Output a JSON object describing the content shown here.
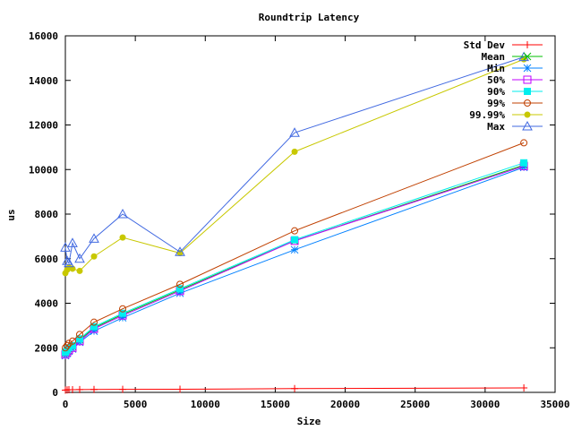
{
  "chart_data": {
    "type": "line",
    "title": "Roundtrip Latency",
    "xlabel": "Size",
    "ylabel": "us",
    "xlim": [
      0,
      35000
    ],
    "ylim": [
      0,
      16000
    ],
    "xticks": [
      0,
      5000,
      10000,
      15000,
      20000,
      25000,
      30000,
      35000
    ],
    "yticks": [
      0,
      2000,
      4000,
      6000,
      8000,
      10000,
      12000,
      14000,
      16000
    ],
    "grid": false,
    "legend": "top-right",
    "x": [
      1,
      128,
      256,
      512,
      1024,
      2048,
      4096,
      8192,
      16384,
      32768
    ],
    "series": [
      {
        "name": "Std Dev",
        "color": "#ff0000",
        "marker": "plus",
        "values": [
          100,
          110,
          120,
          120,
          125,
          130,
          135,
          140,
          170,
          200
        ]
      },
      {
        "name": "Mean",
        "color": "#00c000",
        "marker": "cross",
        "values": [
          1750,
          1850,
          1950,
          2050,
          2350,
          2900,
          3500,
          4600,
          6800,
          10200
        ]
      },
      {
        "name": "Min",
        "color": "#0080ff",
        "marker": "star",
        "values": [
          1650,
          1750,
          1850,
          1950,
          2250,
          2750,
          3350,
          4450,
          6400,
          10100
        ]
      },
      {
        "name": "50%",
        "color": "#c000ff",
        "marker": "box",
        "values": [
          1700,
          1800,
          1900,
          2000,
          2300,
          2850,
          3450,
          4550,
          6800,
          10150
        ]
      },
      {
        "name": "90%",
        "color": "#00eeee",
        "marker": "fbox",
        "values": [
          1800,
          1900,
          2000,
          2100,
          2400,
          2950,
          3550,
          4650,
          6850,
          10300
        ]
      },
      {
        "name": "99%",
        "color": "#c04000",
        "marker": "circle",
        "values": [
          2000,
          2100,
          2200,
          2300,
          2600,
          3150,
          3750,
          4850,
          7250,
          11200
        ]
      },
      {
        "name": "99.99%",
        "color": "#c8c800",
        "marker": "fcircle",
        "values": [
          5350,
          5500,
          5600,
          5550,
          5450,
          6100,
          6950,
          6250,
          10800,
          14950
        ]
      },
      {
        "name": "Max",
        "color": "#4169e1",
        "marker": "triangle",
        "values": [
          6500,
          5900,
          5800,
          6700,
          6000,
          6900,
          8000,
          6300,
          11650,
          15050
        ]
      }
    ]
  }
}
